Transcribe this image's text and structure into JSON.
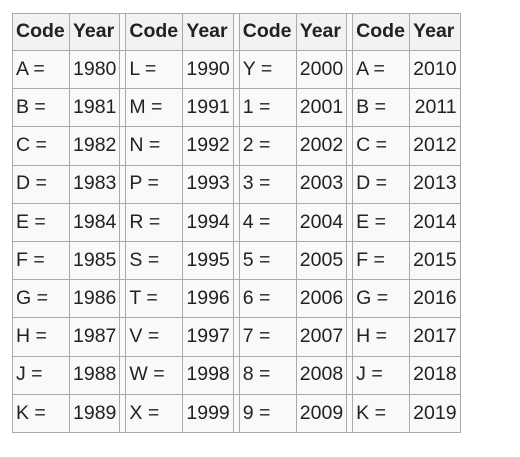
{
  "table": {
    "headers": {
      "code": "Code",
      "year": "Year"
    },
    "groups": [
      {
        "rows": [
          {
            "code": "A =",
            "year": "1980"
          },
          {
            "code": "B =",
            "year": "1981"
          },
          {
            "code": "C =",
            "year": "1982"
          },
          {
            "code": "D =",
            "year": "1983"
          },
          {
            "code": "E =",
            "year": "1984"
          },
          {
            "code": "F =",
            "year": "1985"
          },
          {
            "code": "G =",
            "year": "1986"
          },
          {
            "code": "H =",
            "year": "1987"
          },
          {
            "code": "J =",
            "year": "1988"
          },
          {
            "code": "K =",
            "year": "1989"
          }
        ]
      },
      {
        "rows": [
          {
            "code": "L =",
            "year": "1990"
          },
          {
            "code": "M =",
            "year": "1991"
          },
          {
            "code": "N =",
            "year": "1992"
          },
          {
            "code": "P =",
            "year": "1993"
          },
          {
            "code": "R =",
            "year": "1994"
          },
          {
            "code": "S =",
            "year": "1995"
          },
          {
            "code": "T =",
            "year": "1996"
          },
          {
            "code": "V =",
            "year": "1997"
          },
          {
            "code": "W =",
            "year": "1998"
          },
          {
            "code": "X =",
            "year": "1999"
          }
        ]
      },
      {
        "rows": [
          {
            "code": "Y =",
            "year": "2000"
          },
          {
            "code": "1 =",
            "year": "2001"
          },
          {
            "code": "2 =",
            "year": "2002"
          },
          {
            "code": "3 =",
            "year": "2003"
          },
          {
            "code": "4 =",
            "year": "2004"
          },
          {
            "code": "5 =",
            "year": "2005"
          },
          {
            "code": "6 =",
            "year": "2006"
          },
          {
            "code": "7 =",
            "year": "2007"
          },
          {
            "code": "8 =",
            "year": "2008"
          },
          {
            "code": "9 =",
            "year": "2009"
          }
        ]
      },
      {
        "rows": [
          {
            "code": "A =",
            "year": "2010"
          },
          {
            "code": "B =",
            "year": "2011"
          },
          {
            "code": "C =",
            "year": "2012"
          },
          {
            "code": "D =",
            "year": "2013"
          },
          {
            "code": "E =",
            "year": "2014"
          },
          {
            "code": "F =",
            "year": "2015"
          },
          {
            "code": "G =",
            "year": "2016"
          },
          {
            "code": "H =",
            "year": "2017"
          },
          {
            "code": "J =",
            "year": "2018"
          },
          {
            "code": "K =",
            "year": "2019"
          }
        ]
      }
    ]
  }
}
